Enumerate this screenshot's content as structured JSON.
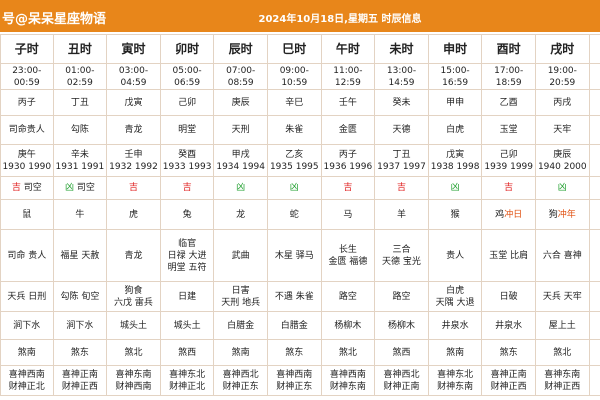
{
  "header": {
    "left": "号@呆呆星座物语",
    "title": "2024年10月18日,星期五 时辰信息"
  },
  "columns": [
    {
      "name": "子时",
      "time": "23:00-00:59",
      "ganzhi": "丙子",
      "star": "司命贵人",
      "year": [
        "庚午",
        "1930 1990"
      ],
      "luck": {
        "level": "吉",
        "extra": "司空",
        "color": "#e02020"
      },
      "animal": {
        "name": "鼠",
        "chong": null
      },
      "good": [
        "司命 贵人"
      ],
      "bad": [
        "天兵 日刑"
      ],
      "nayin": "涧下水",
      "sha": "煞南",
      "gods": [
        "喜神西南",
        "财神正北"
      ]
    },
    {
      "name": "丑时",
      "time": "01:00-02:59",
      "ganzhi": "丁丑",
      "star": "勾陈",
      "year": [
        "辛未",
        "1931 1991"
      ],
      "luck": {
        "level": "凶",
        "extra": "司空",
        "color": "#22a030"
      },
      "animal": {
        "name": "牛",
        "chong": null
      },
      "good": [
        "福星 天赦"
      ],
      "bad": [
        "勾陈 旬空"
      ],
      "nayin": "涧下水",
      "sha": "煞东",
      "gods": [
        "喜神正南",
        "财神正西"
      ]
    },
    {
      "name": "寅时",
      "time": "03:00-04:59",
      "ganzhi": "戊寅",
      "star": "青龙",
      "year": [
        "壬申",
        "1932 1992"
      ],
      "luck": {
        "level": "吉",
        "extra": null,
        "color": "#e02020"
      },
      "animal": {
        "name": "虎",
        "chong": null
      },
      "good": [
        "青龙"
      ],
      "bad": [
        "狗食",
        "六戊 雷兵"
      ],
      "nayin": "城头土",
      "sha": "煞北",
      "gods": [
        "喜神东南",
        "财神西南"
      ]
    },
    {
      "name": "卯时",
      "time": "05:00-06:59",
      "ganzhi": "己卯",
      "star": "明堂",
      "year": [
        "癸酉",
        "1933 1993"
      ],
      "luck": {
        "level": "吉",
        "extra": null,
        "color": "#e02020"
      },
      "animal": {
        "name": "兔",
        "chong": null
      },
      "good": [
        "临官",
        "日禄 大进",
        "明堂 五符"
      ],
      "bad": [
        "日建"
      ],
      "nayin": "城头土",
      "sha": "煞西",
      "gods": [
        "喜神东北",
        "财神正北"
      ]
    },
    {
      "name": "辰时",
      "time": "07:00-08:59",
      "ganzhi": "庚辰",
      "star": "天刑",
      "year": [
        "甲戌",
        "1934 1994"
      ],
      "luck": {
        "level": "凶",
        "extra": null,
        "color": "#22a030"
      },
      "animal": {
        "name": "龙",
        "chong": null
      },
      "good": [
        "武曲"
      ],
      "bad": [
        "日害",
        "天刑 地兵"
      ],
      "nayin": "白腊金",
      "sha": "煞南",
      "gods": [
        "喜神西北",
        "财神正东"
      ]
    },
    {
      "name": "巳时",
      "time": "09:00-10:59",
      "ganzhi": "辛巳",
      "star": "朱雀",
      "year": [
        "乙亥",
        "1935 1995"
      ],
      "luck": {
        "level": "凶",
        "extra": null,
        "color": "#22a030"
      },
      "animal": {
        "name": "蛇",
        "chong": null
      },
      "good": [
        "木星 驿马"
      ],
      "bad": [
        "不遇 朱雀"
      ],
      "nayin": "白腊金",
      "sha": "煞东",
      "gods": [
        "喜神西南",
        "财神正东"
      ]
    },
    {
      "name": "午时",
      "time": "11:00-12:59",
      "ganzhi": "壬午",
      "star": "金匮",
      "year": [
        "丙子",
        "1936 1996"
      ],
      "luck": {
        "level": "吉",
        "extra": null,
        "color": "#e02020"
      },
      "animal": {
        "name": "马",
        "chong": null
      },
      "good": [
        "长生",
        "金匮 福德"
      ],
      "bad": [
        "路空"
      ],
      "nayin": "杨柳木",
      "sha": "煞北",
      "gods": [
        "喜神西南",
        "财神东南"
      ]
    },
    {
      "name": "未时",
      "time": "13:00-14:59",
      "ganzhi": "癸未",
      "star": "天德",
      "year": [
        "丁丑",
        "1937 1997"
      ],
      "luck": {
        "level": "吉",
        "extra": null,
        "color": "#e02020"
      },
      "animal": {
        "name": "羊",
        "chong": null
      },
      "good": [
        "三合",
        "天德 宝光"
      ],
      "bad": [
        "路空"
      ],
      "nayin": "杨柳木",
      "sha": "煞西",
      "gods": [
        "喜神西北",
        "财神正南"
      ]
    },
    {
      "name": "申时",
      "time": "15:00-16:59",
      "ganzhi": "甲申",
      "star": "白虎",
      "year": [
        "戊寅",
        "1938 1998"
      ],
      "luck": {
        "level": "凶",
        "extra": null,
        "color": "#22a030"
      },
      "animal": {
        "name": "猴",
        "chong": null
      },
      "good": [
        "贵人"
      ],
      "bad": [
        "白虎",
        "天隅 大退"
      ],
      "nayin": "井泉水",
      "sha": "煞南",
      "gods": [
        "喜神东北",
        "财神东南"
      ]
    },
    {
      "name": "酉时",
      "time": "17:00-18:59",
      "ganzhi": "乙酉",
      "star": "玉堂",
      "year": [
        "己卯",
        "1939 1999"
      ],
      "luck": {
        "level": "吉",
        "extra": null,
        "color": "#e02020"
      },
      "animal": {
        "name": "鸡",
        "chong": "冲日"
      },
      "good": [
        "玉堂 比肩"
      ],
      "bad": [
        "日破"
      ],
      "nayin": "井泉水",
      "sha": "煞东",
      "gods": [
        "喜神正南",
        "财神正西"
      ]
    },
    {
      "name": "戌时",
      "time": "19:00-20:59",
      "ganzhi": "丙戌",
      "star": "天牢",
      "year": [
        "庚辰",
        "1940 2000"
      ],
      "luck": {
        "level": "凶",
        "extra": null,
        "color": "#22a030"
      },
      "animal": {
        "name": "狗",
        "chong": "冲年"
      },
      "good": [
        "六合 喜神"
      ],
      "bad": [
        "天兵 天牢"
      ],
      "nayin": "屋上土",
      "sha": "煞北",
      "gods": [
        "喜神东南",
        "财神正西"
      ]
    }
  ]
}
